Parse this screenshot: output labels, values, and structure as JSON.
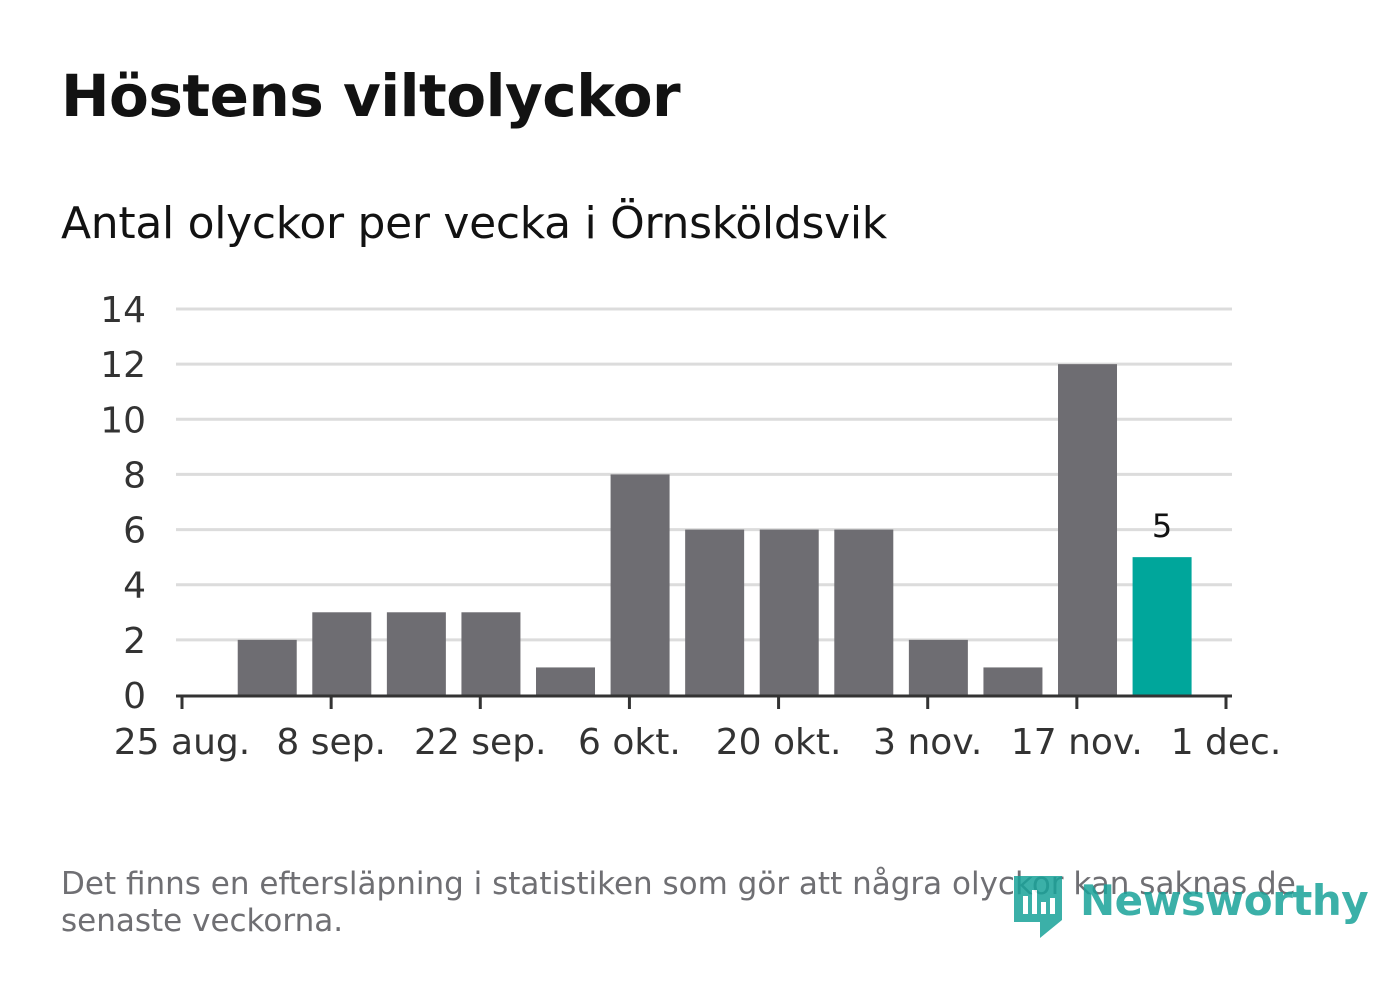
{
  "title": "Höstens viltolyckor",
  "subtitle": "Antal olyckor per vecka i Örnsköldsvik",
  "footnote": "Det finns en eftersläpning i statistiken som gör att några olyckor kan saknas de senaste veckorna.",
  "logo_text": "Newsworthy",
  "colors": {
    "bar": "#6e6d72",
    "highlight": "#00a69b",
    "grid": "#dcdcdc",
    "axis": "#333333",
    "text": "#121212",
    "muted": "#6f6f73"
  },
  "chart_data": {
    "type": "bar",
    "title": "Höstens viltolyckor",
    "subtitle": "Antal olyckor per vecka i Örnsköldsvik",
    "xlabel": "",
    "ylabel": "",
    "x_unit": "week starting",
    "weeks": [
      "2024-09-02",
      "2024-09-09",
      "2024-09-16",
      "2024-09-23",
      "2024-09-30",
      "2024-10-07",
      "2024-10-14",
      "2024-10-21",
      "2024-10-28",
      "2024-11-04",
      "2024-11-11",
      "2024-11-18",
      "2024-11-25"
    ],
    "values": [
      2,
      3,
      3,
      3,
      1,
      8,
      6,
      6,
      6,
      2,
      1,
      12,
      5
    ],
    "highlight_index": 12,
    "data_labels": [
      {
        "index": 12,
        "text": "5"
      }
    ],
    "x_ticks": [
      {
        "date": "2024-08-25",
        "label": "25 aug."
      },
      {
        "date": "2024-09-08",
        "label": "8 sep."
      },
      {
        "date": "2024-09-22",
        "label": "22 sep."
      },
      {
        "date": "2024-10-06",
        "label": "6 okt."
      },
      {
        "date": "2024-10-20",
        "label": "20 okt."
      },
      {
        "date": "2024-11-03",
        "label": "3 nov."
      },
      {
        "date": "2024-11-17",
        "label": "17 nov."
      },
      {
        "date": "2024-12-01",
        "label": "1 dec."
      }
    ],
    "xlim": [
      "2024-08-25",
      "2024-12-01"
    ],
    "ylim": [
      0,
      14
    ],
    "y_ticks": [
      0,
      2,
      4,
      6,
      8,
      10,
      12,
      14
    ],
    "grid": true
  }
}
